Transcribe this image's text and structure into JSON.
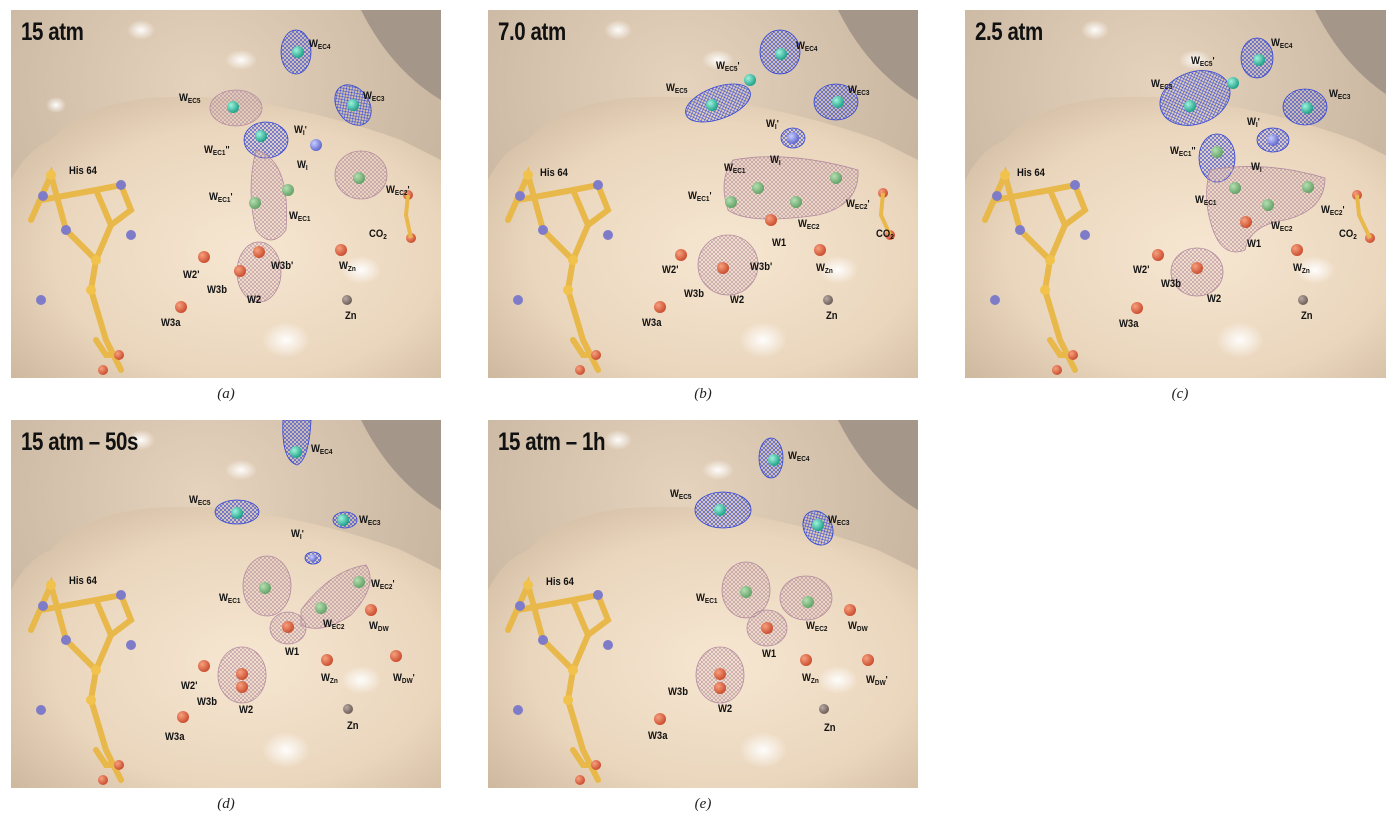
{
  "panels": [
    {
      "title": "15 atm",
      "caption": "(a)",
      "labels": {
        "wec4": {
          "main": "W",
          "sub": "EC4"
        },
        "wec3": {
          "main": "W",
          "sub": "EC3"
        },
        "wec5": {
          "main": "W",
          "sub": "EC5"
        },
        "wi_p": {
          "main": "W",
          "sub": "I",
          "prime": "'"
        },
        "wec1_pp": {
          "main": "W",
          "sub": "EC1",
          "prime": "''"
        },
        "wi": {
          "main": "W",
          "sub": "I"
        },
        "his64": {
          "main": "His 64"
        },
        "wec1_p": {
          "main": "W",
          "sub": "EC1",
          "prime": "'"
        },
        "wec1": {
          "main": "W",
          "sub": "EC1"
        },
        "wec2_p": {
          "main": "W",
          "sub": "EC2",
          "prime": "'"
        },
        "co2": {
          "main": "CO",
          "sub": "2"
        },
        "w3bp": {
          "main": "W3b'"
        },
        "wzn": {
          "main": "W",
          "sub": "Zn"
        },
        "w2p": {
          "main": "W2'"
        },
        "w3b": {
          "main": "W3b"
        },
        "w2": {
          "main": "W2"
        },
        "zn": {
          "main": "Zn"
        },
        "w3a": {
          "main": "W3a"
        }
      }
    },
    {
      "title": "7.0 atm",
      "caption": "(b)",
      "labels": {
        "wec4": {
          "main": "W",
          "sub": "EC4"
        },
        "wec5_p": {
          "main": "W",
          "sub": "EC5",
          "prime": "'"
        },
        "wec5": {
          "main": "W",
          "sub": "EC5"
        },
        "wec3": {
          "main": "W",
          "sub": "EC3"
        },
        "wi_p": {
          "main": "W",
          "sub": "I",
          "prime": "'"
        },
        "wi": {
          "main": "W",
          "sub": "I"
        },
        "his64": {
          "main": "His 64"
        },
        "wec1": {
          "main": "W",
          "sub": "EC1"
        },
        "wec1_p": {
          "main": "W",
          "sub": "EC1",
          "prime": "'"
        },
        "wec2": {
          "main": "W",
          "sub": "EC2"
        },
        "wec2_p": {
          "main": "W",
          "sub": "EC2",
          "prime": "'"
        },
        "co2": {
          "main": "CO",
          "sub": "2"
        },
        "w1": {
          "main": "W1"
        },
        "w2p": {
          "main": "W2'"
        },
        "w3bp": {
          "main": "W3b'"
        },
        "wzn": {
          "main": "W",
          "sub": "Zn"
        },
        "w3b": {
          "main": "W3b"
        },
        "w2": {
          "main": "W2"
        },
        "zn": {
          "main": "Zn"
        },
        "w3a": {
          "main": "W3a"
        }
      }
    },
    {
      "title": "2.5 atm",
      "caption": "(c)",
      "labels": {
        "wec4": {
          "main": "W",
          "sub": "EC4"
        },
        "wec5_p": {
          "main": "W",
          "sub": "EC5",
          "prime": "'"
        },
        "wec5": {
          "main": "W",
          "sub": "EC5"
        },
        "wec3": {
          "main": "W",
          "sub": "EC3"
        },
        "wi_p": {
          "main": "W",
          "sub": "I",
          "prime": "'"
        },
        "wec1_pp": {
          "main": "W",
          "sub": "EC1",
          "prime": "''"
        },
        "wi": {
          "main": "W",
          "sub": "I"
        },
        "his64": {
          "main": "His 64"
        },
        "wec1": {
          "main": "W",
          "sub": "EC1"
        },
        "wec2": {
          "main": "W",
          "sub": "EC2"
        },
        "wec2_p": {
          "main": "W",
          "sub": "EC2",
          "prime": "'"
        },
        "co2": {
          "main": "CO",
          "sub": "2"
        },
        "w1": {
          "main": "W1"
        },
        "w2p": {
          "main": "W2'"
        },
        "wzn": {
          "main": "W",
          "sub": "Zn"
        },
        "w3b": {
          "main": "W3b"
        },
        "w2": {
          "main": "W2"
        },
        "zn": {
          "main": "Zn"
        },
        "w3a": {
          "main": "W3a"
        }
      }
    },
    {
      "title": "15 atm – 50s",
      "caption": "(d)",
      "labels": {
        "wec4": {
          "main": "W",
          "sub": "EC4"
        },
        "wec5": {
          "main": "W",
          "sub": "EC5"
        },
        "wec3": {
          "main": "W",
          "sub": "EC3"
        },
        "wi_p": {
          "main": "W",
          "sub": "I",
          "prime": "'"
        },
        "his64": {
          "main": "His 64"
        },
        "wec2_p": {
          "main": "W",
          "sub": "EC2",
          "prime": "'"
        },
        "wec1": {
          "main": "W",
          "sub": "EC1"
        },
        "wec2": {
          "main": "W",
          "sub": "EC2"
        },
        "wdw": {
          "main": "W",
          "sub": "DW"
        },
        "w1": {
          "main": "W1"
        },
        "wzn": {
          "main": "W",
          "sub": "Zn"
        },
        "wdw_p": {
          "main": "W",
          "sub": "DW",
          "prime": "'"
        },
        "w2p": {
          "main": "W2'"
        },
        "w3b": {
          "main": "W3b"
        },
        "w2": {
          "main": "W2"
        },
        "zn": {
          "main": "Zn"
        },
        "w3a": {
          "main": "W3a"
        }
      }
    },
    {
      "title": "15 atm – 1h",
      "caption": "(e)",
      "labels": {
        "wec4": {
          "main": "W",
          "sub": "EC4"
        },
        "wec5": {
          "main": "W",
          "sub": "EC5"
        },
        "wec3": {
          "main": "W",
          "sub": "EC3"
        },
        "his64": {
          "main": "His 64"
        },
        "wec1": {
          "main": "W",
          "sub": "EC1"
        },
        "wec2": {
          "main": "W",
          "sub": "EC2"
        },
        "wdw": {
          "main": "W",
          "sub": "DW"
        },
        "w1": {
          "main": "W1"
        },
        "wzn": {
          "main": "W",
          "sub": "Zn"
        },
        "wdw_p": {
          "main": "W",
          "sub": "DW",
          "prime": "'"
        },
        "w3b": {
          "main": "W3b"
        },
        "w2": {
          "main": "W2"
        },
        "zn": {
          "main": "Zn"
        },
        "w3a": {
          "main": "W3a"
        }
      }
    }
  ]
}
